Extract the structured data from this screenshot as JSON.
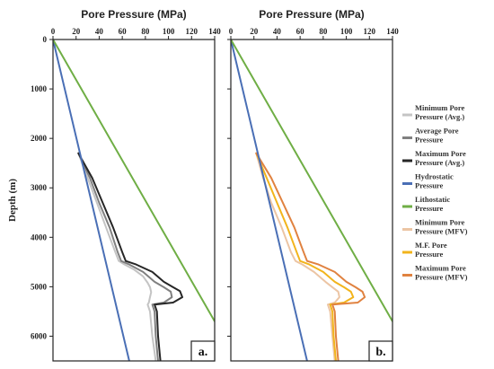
{
  "chart_data": [
    {
      "type": "line",
      "panel_label": "a.",
      "title": "Pore Pressure (MPa)",
      "xlabel": "Pore Pressure (MPa)",
      "ylabel": "Depth (m)",
      "xlim": [
        0,
        140
      ],
      "ylim": [
        6500,
        0
      ],
      "xticks": [
        "0",
        "20",
        "40",
        "60",
        "80",
        "100",
        "120",
        "140"
      ],
      "yticks": [
        "0",
        "1000",
        "2000",
        "3000",
        "4000",
        "5000",
        "6000"
      ],
      "series": [
        {
          "name": "Minimum Pore Pressure (Avg.)",
          "color": "#c4c4c4",
          "points": [
            [
              22,
              2300
            ],
            [
              30,
              2800
            ],
            [
              38,
              3300
            ],
            [
              46,
              3800
            ],
            [
              54,
              4300
            ],
            [
              57,
              4480
            ],
            [
              62,
              4550
            ],
            [
              70,
              4650
            ],
            [
              78,
              4790
            ],
            [
              82,
              4920
            ],
            [
              84,
              5010
            ],
            [
              85,
              5110
            ],
            [
              84,
              5210
            ],
            [
              83,
              5320
            ],
            [
              82,
              5360
            ],
            [
              84,
              5500
            ],
            [
              86,
              6000
            ],
            [
              89,
              6500
            ]
          ]
        },
        {
          "name": "Average Pore Pressure",
          "color": "#808080",
          "points": [
            [
              22,
              2300
            ],
            [
              32,
              2800
            ],
            [
              40,
              3300
            ],
            [
              49,
              3800
            ],
            [
              56,
              4300
            ],
            [
              59,
              4480
            ],
            [
              66,
              4550
            ],
            [
              78,
              4700
            ],
            [
              88,
              4900
            ],
            [
              96,
              5010
            ],
            [
              102,
              5100
            ],
            [
              103,
              5210
            ],
            [
              96,
              5320
            ],
            [
              86,
              5360
            ],
            [
              88,
              5500
            ],
            [
              89,
              6000
            ],
            [
              91,
              6500
            ]
          ]
        },
        {
          "name": "Maximum Pore Pressure (Avg.)",
          "color": "#262626",
          "points": [
            [
              22,
              2300
            ],
            [
              34,
              2800
            ],
            [
              43,
              3300
            ],
            [
              52,
              3800
            ],
            [
              60,
              4300
            ],
            [
              63,
              4480
            ],
            [
              72,
              4550
            ],
            [
              86,
              4700
            ],
            [
              96,
              4900
            ],
            [
              104,
              5010
            ],
            [
              110,
              5090
            ],
            [
              112,
              5210
            ],
            [
              104,
              5320
            ],
            [
              88,
              5360
            ],
            [
              90,
              5500
            ],
            [
              91,
              6000
            ],
            [
              93,
              6500
            ]
          ]
        },
        {
          "name": "Hydrostatic Pressure",
          "color": "#4a6fb5",
          "points": [
            [
              0,
              0
            ],
            [
              66,
              6500
            ]
          ]
        },
        {
          "name": "Lithostatic Pressure",
          "color": "#6fae45",
          "points": [
            [
              0,
              0
            ],
            [
              140,
              5700
            ]
          ]
        }
      ]
    },
    {
      "type": "line",
      "panel_label": "b.",
      "title": "Pore Pressure (MPa)",
      "xlabel": "Pore Pressure (MPa)",
      "ylabel": "",
      "xlim": [
        0,
        140
      ],
      "ylim": [
        6500,
        0
      ],
      "xticks": [
        "0",
        "20",
        "40",
        "60",
        "80",
        "100",
        "120",
        "140"
      ],
      "yticks": [
        "0",
        "1000",
        "2000",
        "3000",
        "4000",
        "5000",
        "6000"
      ],
      "series": [
        {
          "name": "Minimum Pore Pressure (MFV)",
          "color": "#ecc5a4",
          "points": [
            [
              22,
              2300
            ],
            [
              28,
              2800
            ],
            [
              35,
              3300
            ],
            [
              44,
              3800
            ],
            [
              52,
              4300
            ],
            [
              56,
              4480
            ],
            [
              62,
              4550
            ],
            [
              72,
              4700
            ],
            [
              82,
              4900
            ],
            [
              88,
              5010
            ],
            [
              93,
              5100
            ],
            [
              94,
              5210
            ],
            [
              90,
              5320
            ],
            [
              84,
              5360
            ],
            [
              86,
              5500
            ],
            [
              88,
              6000
            ],
            [
              90,
              6500
            ]
          ]
        },
        {
          "name": "M.F. Pore Pressure",
          "color": "#f2b41c",
          "points": [
            [
              22,
              2300
            ],
            [
              31,
              2800
            ],
            [
              40,
              3300
            ],
            [
              49,
              3800
            ],
            [
              57,
              4300
            ],
            [
              60,
              4480
            ],
            [
              68,
              4550
            ],
            [
              80,
              4700
            ],
            [
              90,
              4900
            ],
            [
              98,
              5010
            ],
            [
              104,
              5100
            ],
            [
              106,
              5210
            ],
            [
              98,
              5320
            ],
            [
              86,
              5360
            ],
            [
              88,
              5500
            ],
            [
              89,
              6000
            ],
            [
              91,
              6500
            ]
          ]
        },
        {
          "name": "Maximum Pore Pressure (MFV)",
          "color": "#e08240",
          "points": [
            [
              22,
              2300
            ],
            [
              35,
              2800
            ],
            [
              45,
              3300
            ],
            [
              55,
              3800
            ],
            [
              63,
              4300
            ],
            [
              66,
              4480
            ],
            [
              76,
              4550
            ],
            [
              90,
              4700
            ],
            [
              100,
              4900
            ],
            [
              108,
              5010
            ],
            [
              114,
              5100
            ],
            [
              116,
              5210
            ],
            [
              110,
              5320
            ],
            [
              88,
              5360
            ],
            [
              90,
              5500
            ],
            [
              91,
              6000
            ],
            [
              93,
              6500
            ]
          ]
        },
        {
          "name": "Hydrostatic Pressure",
          "color": "#4a6fb5",
          "points": [
            [
              0,
              0
            ],
            [
              66,
              6500
            ]
          ]
        },
        {
          "name": "Lithostatic Pressure",
          "color": "#6fae45",
          "points": [
            [
              0,
              0
            ],
            [
              140,
              5700
            ]
          ]
        }
      ]
    }
  ],
  "legend": [
    {
      "label": "Minimum Pore Pressure (Avg.)",
      "color": "#c4c4c4",
      "lines": [
        "Minimum Pore",
        "Pressure (Avg.)"
      ]
    },
    {
      "label": "Average Pore Pressure",
      "color": "#808080",
      "lines": [
        "Average Pore",
        "Pressure"
      ]
    },
    {
      "label": "Maximum Pore Pressure (Avg.)",
      "color": "#262626",
      "lines": [
        "Maximum Pore",
        "Pressure (Avg.)"
      ]
    },
    {
      "label": "Hydrostatic Pressure",
      "color": "#4a6fb5",
      "lines": [
        "Hydrostatic",
        "Pressure"
      ]
    },
    {
      "label": "Lithostatic Pressure",
      "color": "#6fae45",
      "lines": [
        "Lithostatic",
        "Pressure"
      ]
    },
    {
      "label": "Minimum Pore Pressure (MFV)",
      "color": "#ecc5a4",
      "lines": [
        "Minimum Pore",
        "Pressure (MFV)"
      ]
    },
    {
      "label": "M.F. Pore Pressure",
      "color": "#f2b41c",
      "lines": [
        "M.F. Pore",
        "Pressure"
      ]
    },
    {
      "label": "Maximum Pore Pressure (MFV)",
      "color": "#e08240",
      "lines": [
        "Maximum Pore",
        "Pressure (MFV)"
      ]
    }
  ],
  "colors": {
    "frame": "#222222",
    "background": "#ffffff"
  }
}
